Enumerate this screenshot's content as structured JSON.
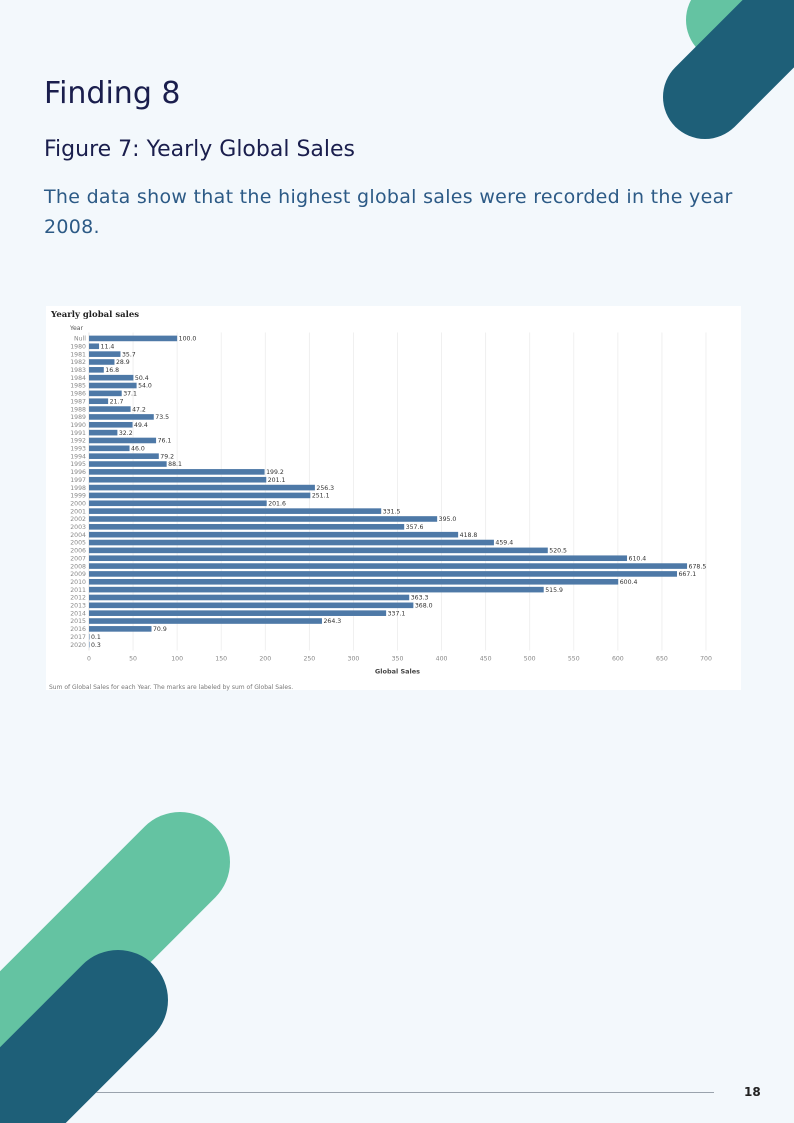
{
  "page": {
    "heading": "Finding 8",
    "figure_title": "Figure 7: Yearly Global Sales",
    "body_text": "The data show that the highest global sales were recorded in the year 2008.",
    "page_number": "18",
    "colors": {
      "teal": "#1e5f78",
      "green": "#64c3a2",
      "text_dark": "#1a1e4d",
      "text_blue": "#2c5a86",
      "bar": "#4e79a7"
    }
  },
  "chart_data": {
    "type": "bar",
    "orientation": "horizontal",
    "title": "Yearly global sales",
    "category_header": "Year",
    "xlabel": "Global Sales",
    "xlim": [
      0,
      700
    ],
    "xticks": [
      0,
      50,
      100,
      150,
      200,
      250,
      300,
      350,
      400,
      450,
      500,
      550,
      600,
      650,
      700
    ],
    "grid": true,
    "note": "Sum of Global Sales for each Year.  The marks are labeled by sum of Global Sales.",
    "categories": [
      "Null",
      "1980",
      "1981",
      "1982",
      "1983",
      "1984",
      "1985",
      "1986",
      "1987",
      "1988",
      "1989",
      "1990",
      "1991",
      "1992",
      "1993",
      "1994",
      "1995",
      "1996",
      "1997",
      "1998",
      "1999",
      "2000",
      "2001",
      "2002",
      "2003",
      "2004",
      "2005",
      "2006",
      "2007",
      "2008",
      "2009",
      "2010",
      "2011",
      "2012",
      "2013",
      "2014",
      "2015",
      "2016",
      "2017",
      "2020"
    ],
    "values": [
      100.0,
      11.4,
      35.7,
      28.9,
      16.8,
      50.4,
      54.0,
      37.1,
      21.7,
      47.2,
      73.5,
      49.4,
      32.2,
      76.1,
      46.0,
      79.2,
      88.1,
      199.2,
      201.1,
      256.3,
      251.1,
      201.6,
      331.5,
      395.0,
      357.6,
      418.8,
      459.4,
      520.5,
      610.4,
      678.5,
      667.1,
      600.4,
      515.9,
      363.3,
      368.0,
      337.1,
      264.3,
      70.9,
      0.1,
      0.3
    ],
    "labels": [
      "100.0",
      "11.4",
      "35.7",
      "28.9",
      "16.8",
      "50.4",
      "54.0",
      "37.1",
      "21.7",
      "47.2",
      "73.5",
      "49.4",
      "32.2",
      "76.1",
      "46.0",
      "79.2",
      "88.1",
      "199.2",
      "201.1",
      "256.3",
      "251.1",
      "201.6",
      "331.5",
      "395.0",
      "357.6",
      "418.8",
      "459.4",
      "520.5",
      "610.4",
      "678.5",
      "667.1",
      "600.4",
      "515.9",
      "363.3",
      "368.0",
      "337.1",
      "264.3",
      "70.9",
      "0.1",
      "0.3"
    ],
    "bar_color": "#4e79a7"
  }
}
